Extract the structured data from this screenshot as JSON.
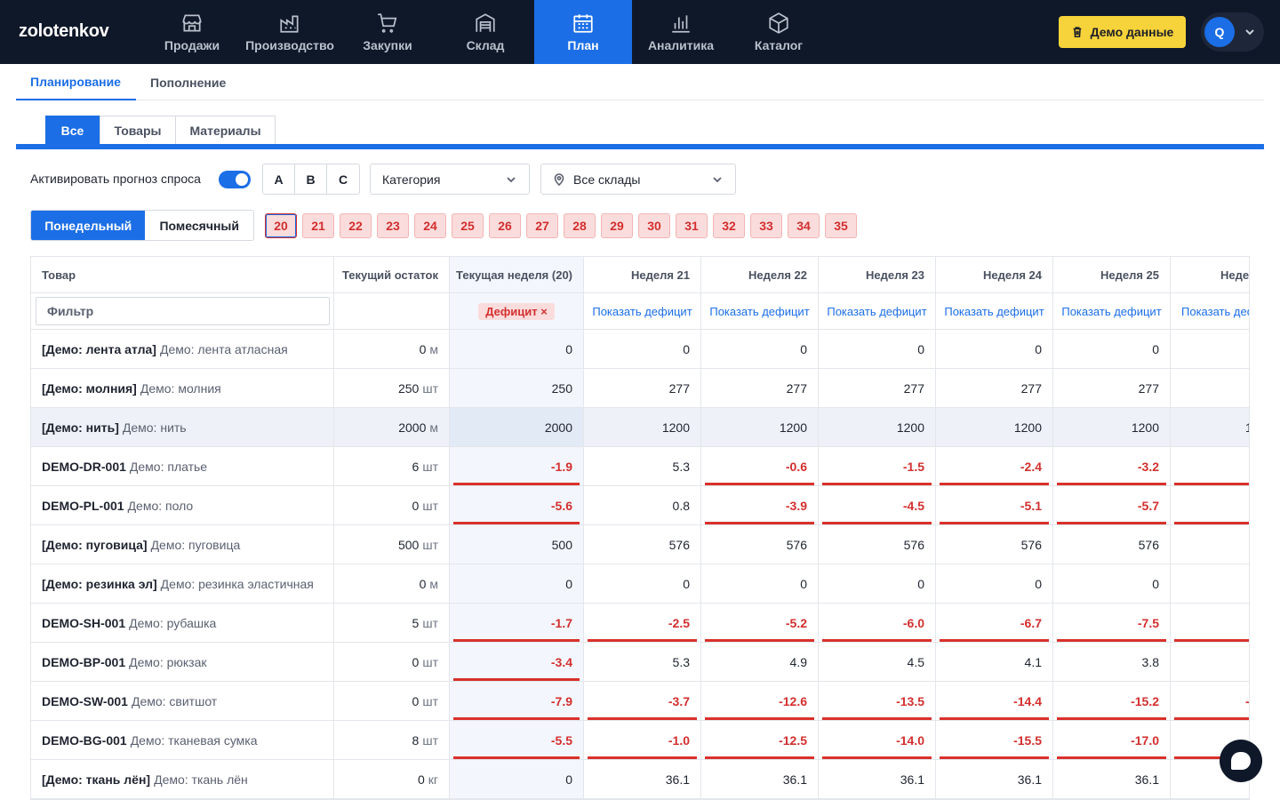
{
  "app": {
    "logo": "zolotenkov"
  },
  "nav": [
    {
      "label": "Продажи",
      "icon": "store-icon"
    },
    {
      "label": "Производство",
      "icon": "factory-icon"
    },
    {
      "label": "Закупки",
      "icon": "cart-icon"
    },
    {
      "label": "Склад",
      "icon": "warehouse-icon"
    },
    {
      "label": "План",
      "icon": "calendar-icon",
      "active": true
    },
    {
      "label": "Аналитика",
      "icon": "chart-icon"
    },
    {
      "label": "Каталог",
      "icon": "box-icon"
    }
  ],
  "header": {
    "demo_label": "Демо данные",
    "user_initial": "Q"
  },
  "subtabs": [
    {
      "label": "Планирование",
      "active": true
    },
    {
      "label": "Пополнение"
    }
  ],
  "typetabs": [
    {
      "label": "Все",
      "active": true
    },
    {
      "label": "Товары"
    },
    {
      "label": "Материалы"
    }
  ],
  "controls": {
    "forecast_label": "Активировать прогноз спроса",
    "forecast_enabled": true,
    "abc": [
      "A",
      "B",
      "C"
    ],
    "category_placeholder": "Категория",
    "warehouse_value": "Все склады",
    "period": {
      "weekly": "Понедельный",
      "monthly": "Помесячный"
    },
    "weeks": [
      "20",
      "21",
      "22",
      "23",
      "24",
      "25",
      "26",
      "27",
      "28",
      "29",
      "30",
      "31",
      "32",
      "33",
      "34",
      "35"
    ]
  },
  "table": {
    "headers": [
      "Товар",
      "Текущий остаток",
      "Текущая неделя (20)",
      "Неделя 21",
      "Неделя 22",
      "Неделя 23",
      "Неделя 24",
      "Неделя 25",
      "Неде..."
    ],
    "filter_placeholder": "Фильтр",
    "deficit_tag": "Дефицит",
    "show_deficit": "Показать дефицит",
    "rows": [
      {
        "code": "[Демо: лента атла]",
        "name": "Демо: лента атласная",
        "stock": "0",
        "unit": "м",
        "weeks": [
          "0",
          "0",
          "0",
          "0",
          "0",
          "0"
        ],
        "edge": ""
      },
      {
        "code": "[Демо: молния]",
        "name": "Демо: молния",
        "stock": "250",
        "unit": "шт",
        "weeks": [
          "250",
          "277",
          "277",
          "277",
          "277",
          "277"
        ],
        "edge": ""
      },
      {
        "code": "[Демо: нить]",
        "name": "Демо: нить",
        "stock": "2000",
        "unit": "м",
        "weeks": [
          "2000",
          "1200",
          "1200",
          "1200",
          "1200",
          "1200"
        ],
        "edge": "1",
        "highlight": true
      },
      {
        "code": "DEMO-DR-001",
        "name": "Демо: платье",
        "stock": "6",
        "unit": "шт",
        "weeks": [
          "-1.9",
          "5.3",
          "-0.6",
          "-1.5",
          "-2.4",
          "-3.2"
        ],
        "edge": ""
      },
      {
        "code": "DEMO-PL-001",
        "name": "Демо: поло",
        "stock": "0",
        "unit": "шт",
        "weeks": [
          "-5.6",
          "0.8",
          "-3.9",
          "-4.5",
          "-5.1",
          "-5.7"
        ],
        "edge": ""
      },
      {
        "code": "[Демо: пуговица]",
        "name": "Демо: пуговица",
        "stock": "500",
        "unit": "шт",
        "weeks": [
          "500",
          "576",
          "576",
          "576",
          "576",
          "576"
        ],
        "edge": ""
      },
      {
        "code": "[Демо: резинка эл]",
        "name": "Демо: резинка эластичная",
        "stock": "0",
        "unit": "м",
        "weeks": [
          "0",
          "0",
          "0",
          "0",
          "0",
          "0"
        ],
        "edge": ""
      },
      {
        "code": "DEMO-SH-001",
        "name": "Демо: рубашка",
        "stock": "5",
        "unit": "шт",
        "weeks": [
          "-1.7",
          "-2.5",
          "-5.2",
          "-6.0",
          "-6.7",
          "-7.5"
        ],
        "edge": ""
      },
      {
        "code": "DEMO-BP-001",
        "name": "Демо: рюкзак",
        "stock": "0",
        "unit": "шт",
        "weeks": [
          "-3.4",
          "5.3",
          "4.9",
          "4.5",
          "4.1",
          "3.8"
        ],
        "edge": ""
      },
      {
        "code": "DEMO-SW-001",
        "name": "Демо: свитшот",
        "stock": "0",
        "unit": "шт",
        "weeks": [
          "-7.9",
          "-3.7",
          "-12.6",
          "-13.5",
          "-14.4",
          "-15.2"
        ],
        "edge": "-"
      },
      {
        "code": "DEMO-BG-001",
        "name": "Демо: тканевая сумка",
        "stock": "8",
        "unit": "шт",
        "weeks": [
          "-5.5",
          "-1.0",
          "-12.5",
          "-14.0",
          "-15.5",
          "-17.0"
        ],
        "edge": ""
      },
      {
        "code": "[Демо: ткань лён]",
        "name": "Демо: ткань лён",
        "stock": "0",
        "unit": "кг",
        "weeks": [
          "0",
          "36.1",
          "36.1",
          "36.1",
          "36.1",
          "36.1"
        ],
        "edge": ""
      }
    ]
  },
  "colors": {
    "nav_bg": "#0f1829",
    "accent": "#1b6ee6",
    "deficit": "#d32f2f",
    "demo_btn": "#f7d33b"
  }
}
